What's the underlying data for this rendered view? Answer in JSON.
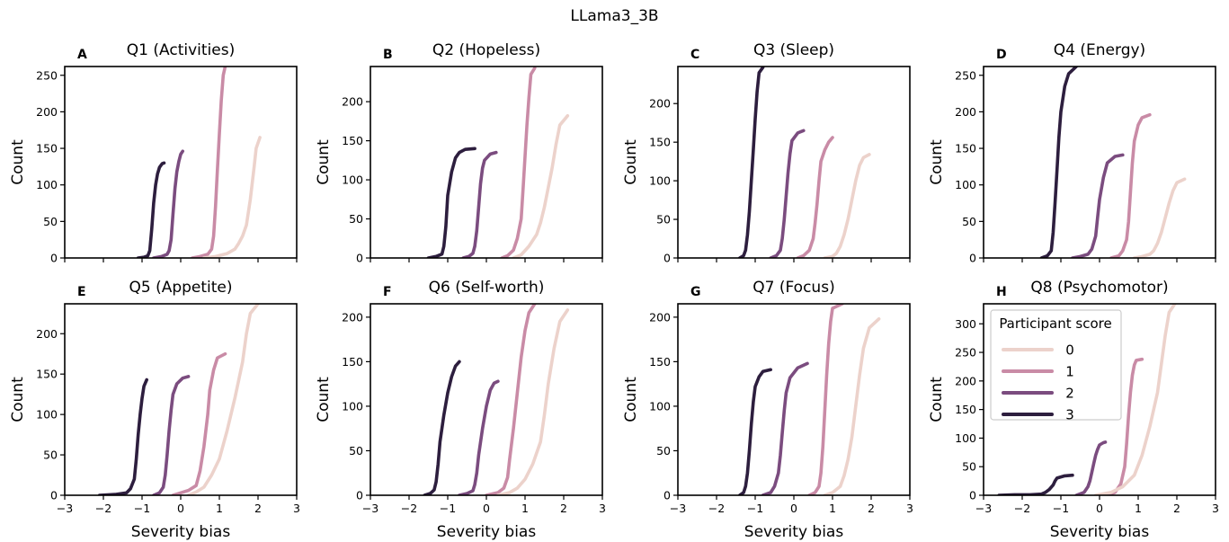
{
  "figure": {
    "title": "LLama3_3B",
    "xlabel": "Severity bias",
    "ylabel": "Count",
    "x_ticks": [
      "−3",
      "−2",
      "−1",
      "0",
      "1",
      "2",
      "3"
    ]
  },
  "legend": {
    "title": "Participant score",
    "entries": [
      {
        "label": "0",
        "color": "#ecd2cb"
      },
      {
        "label": "1",
        "color": "#c98ba6"
      },
      {
        "label": "2",
        "color": "#7b4c7f"
      },
      {
        "label": "3",
        "color": "#2d1e3e"
      }
    ]
  },
  "chart_data": [
    {
      "panel": "A",
      "type": "line",
      "title": "Q1 (Activities)",
      "xlabel": "",
      "ylabel": "Count",
      "xlim": [
        -3,
        3
      ],
      "ylim": [
        0,
        262
      ],
      "yticks": [
        0,
        50,
        100,
        150,
        200,
        250
      ],
      "series": [
        {
          "name": "3",
          "x": [
            -1.1,
            -0.95,
            -0.85,
            -0.8,
            -0.75,
            -0.7,
            -0.65,
            -0.6,
            -0.55,
            -0.48,
            -0.43
          ],
          "y": [
            0,
            1,
            3,
            10,
            40,
            75,
            100,
            115,
            124,
            129,
            130
          ]
        },
        {
          "name": "2",
          "x": [
            -0.7,
            -0.5,
            -0.35,
            -0.3,
            -0.25,
            -0.2,
            -0.15,
            -0.1,
            -0.05,
            0.0,
            0.05
          ],
          "y": [
            0,
            2,
            5,
            10,
            25,
            60,
            95,
            118,
            132,
            142,
            146
          ]
        },
        {
          "name": "1",
          "x": [
            0.3,
            0.5,
            0.7,
            0.8,
            0.85,
            0.9,
            0.95,
            1.0,
            1.05,
            1.1,
            1.15
          ],
          "y": [
            0,
            2,
            5,
            12,
            30,
            70,
            120,
            170,
            215,
            250,
            262
          ]
        },
        {
          "name": "0",
          "x": [
            0.6,
            0.9,
            1.2,
            1.4,
            1.5,
            1.6,
            1.7,
            1.8,
            1.9,
            1.95,
            2.05
          ],
          "y": [
            0,
            2,
            6,
            12,
            20,
            30,
            45,
            80,
            125,
            150,
            165
          ]
        }
      ]
    },
    {
      "panel": "B",
      "type": "line",
      "title": "Q2 (Hopeless)",
      "xlabel": "",
      "ylabel": "Count",
      "xlim": [
        -3,
        3
      ],
      "ylim": [
        0,
        245
      ],
      "yticks": [
        0,
        50,
        100,
        150,
        200
      ],
      "series": [
        {
          "name": "3",
          "x": [
            -1.5,
            -1.3,
            -1.15,
            -1.1,
            -1.05,
            -1.0,
            -0.9,
            -0.8,
            -0.7,
            -0.55,
            -0.3
          ],
          "y": [
            0,
            2,
            5,
            15,
            40,
            80,
            110,
            128,
            135,
            139,
            140
          ]
        },
        {
          "name": "2",
          "x": [
            -0.6,
            -0.45,
            -0.35,
            -0.3,
            -0.25,
            -0.2,
            -0.15,
            -0.1,
            -0.05,
            0.1,
            0.25
          ],
          "y": [
            0,
            2,
            6,
            15,
            35,
            65,
            95,
            115,
            125,
            133,
            135
          ]
        },
        {
          "name": "1",
          "x": [
            0.4,
            0.55,
            0.7,
            0.8,
            0.9,
            0.95,
            1.0,
            1.05,
            1.1,
            1.15,
            1.25
          ],
          "y": [
            0,
            3,
            10,
            25,
            50,
            90,
            130,
            170,
            205,
            235,
            243
          ]
        },
        {
          "name": "0",
          "x": [
            0.7,
            0.9,
            1.1,
            1.3,
            1.4,
            1.5,
            1.6,
            1.7,
            1.8,
            1.9,
            2.1
          ],
          "y": [
            0,
            4,
            15,
            30,
            45,
            65,
            90,
            115,
            145,
            170,
            182
          ]
        }
      ]
    },
    {
      "panel": "C",
      "type": "line",
      "title": "Q3 (Sleep)",
      "xlabel": "",
      "ylabel": "Count",
      "xlim": [
        -3,
        3
      ],
      "ylim": [
        0,
        248
      ],
      "yticks": [
        0,
        50,
        100,
        150,
        200
      ],
      "series": [
        {
          "name": "3",
          "x": [
            -1.4,
            -1.3,
            -1.25,
            -1.2,
            -1.15,
            -1.1,
            -1.05,
            -1.0,
            -0.95,
            -0.9,
            -0.8
          ],
          "y": [
            0,
            3,
            10,
            30,
            60,
            100,
            140,
            180,
            215,
            240,
            247
          ]
        },
        {
          "name": "2",
          "x": [
            -0.6,
            -0.45,
            -0.35,
            -0.3,
            -0.25,
            -0.2,
            -0.15,
            -0.1,
            -0.05,
            0.1,
            0.25
          ],
          "y": [
            0,
            3,
            10,
            25,
            50,
            80,
            110,
            135,
            152,
            162,
            165
          ]
        },
        {
          "name": "1",
          "x": [
            0.1,
            0.25,
            0.4,
            0.5,
            0.55,
            0.6,
            0.65,
            0.7,
            0.8,
            0.9,
            1.0
          ],
          "y": [
            0,
            3,
            10,
            25,
            45,
            70,
            100,
            125,
            140,
            150,
            156
          ]
        },
        {
          "name": "0",
          "x": [
            0.8,
            1.0,
            1.1,
            1.2,
            1.3,
            1.4,
            1.5,
            1.6,
            1.7,
            1.8,
            1.95
          ],
          "y": [
            0,
            2,
            6,
            15,
            30,
            50,
            75,
            100,
            120,
            130,
            134
          ]
        }
      ]
    },
    {
      "panel": "D",
      "type": "line",
      "title": "Q4 (Energy)",
      "xlabel": "",
      "ylabel": "Count",
      "xlim": [
        -3,
        3
      ],
      "ylim": [
        0,
        262
      ],
      "yticks": [
        0,
        50,
        100,
        150,
        200,
        250
      ],
      "series": [
        {
          "name": "3",
          "x": [
            -1.5,
            -1.35,
            -1.25,
            -1.2,
            -1.15,
            -1.1,
            -1.05,
            -1.0,
            -0.9,
            -0.8,
            -0.6
          ],
          "y": [
            0,
            3,
            10,
            35,
            75,
            120,
            165,
            200,
            235,
            252,
            262
          ]
        },
        {
          "name": "2",
          "x": [
            -0.7,
            -0.5,
            -0.3,
            -0.2,
            -0.1,
            -0.05,
            0.0,
            0.1,
            0.2,
            0.4,
            0.6
          ],
          "y": [
            0,
            2,
            5,
            12,
            30,
            55,
            80,
            110,
            130,
            139,
            141
          ]
        },
        {
          "name": "1",
          "x": [
            0.3,
            0.5,
            0.6,
            0.7,
            0.75,
            0.8,
            0.85,
            0.9,
            1.0,
            1.1,
            1.3
          ],
          "y": [
            0,
            3,
            10,
            25,
            50,
            90,
            130,
            160,
            182,
            192,
            196
          ]
        },
        {
          "name": "0",
          "x": [
            0.9,
            1.1,
            1.3,
            1.4,
            1.5,
            1.6,
            1.7,
            1.8,
            1.9,
            2.0,
            2.2
          ],
          "y": [
            0,
            2,
            5,
            10,
            20,
            35,
            55,
            75,
            92,
            103,
            108
          ]
        }
      ]
    },
    {
      "panel": "E",
      "type": "line",
      "title": "Q5 (Appetite)",
      "xlabel": "Severity bias",
      "ylabel": "Count",
      "xlim": [
        -3,
        3
      ],
      "ylim": [
        0,
        237
      ],
      "yticks": [
        0,
        50,
        100,
        150,
        200
      ],
      "series": [
        {
          "name": "3",
          "x": [
            -2.1,
            -1.7,
            -1.4,
            -1.3,
            -1.2,
            -1.15,
            -1.1,
            -1.05,
            -1.0,
            -0.95,
            -0.88
          ],
          "y": [
            0,
            1,
            3,
            8,
            20,
            45,
            75,
            100,
            120,
            135,
            143
          ]
        },
        {
          "name": "2",
          "x": [
            -0.7,
            -0.55,
            -0.45,
            -0.4,
            -0.35,
            -0.3,
            -0.25,
            -0.2,
            -0.1,
            0.05,
            0.2
          ],
          "y": [
            0,
            3,
            10,
            25,
            50,
            80,
            105,
            125,
            138,
            145,
            147
          ]
        },
        {
          "name": "1",
          "x": [
            -0.2,
            0.0,
            0.2,
            0.4,
            0.5,
            0.6,
            0.7,
            0.75,
            0.85,
            0.95,
            1.15
          ],
          "y": [
            0,
            3,
            6,
            12,
            30,
            60,
            100,
            130,
            155,
            170,
            175
          ]
        },
        {
          "name": "0",
          "x": [
            0.2,
            0.4,
            0.6,
            0.8,
            1.0,
            1.2,
            1.4,
            1.6,
            1.7,
            1.8,
            2.0
          ],
          "y": [
            0,
            4,
            10,
            25,
            45,
            80,
            120,
            165,
            200,
            225,
            237
          ]
        }
      ]
    },
    {
      "panel": "F",
      "type": "line",
      "title": "Q6 (Self-worth)",
      "xlabel": "Severity bias",
      "ylabel": "Count",
      "xlim": [
        -3,
        3
      ],
      "ylim": [
        0,
        215
      ],
      "yticks": [
        0,
        50,
        100,
        150,
        200
      ],
      "series": [
        {
          "name": "3",
          "x": [
            -1.6,
            -1.45,
            -1.35,
            -1.3,
            -1.25,
            -1.2,
            -1.1,
            -1.0,
            -0.9,
            -0.8,
            -0.7
          ],
          "y": [
            0,
            2,
            6,
            15,
            35,
            60,
            90,
            115,
            133,
            145,
            150
          ]
        },
        {
          "name": "2",
          "x": [
            -0.7,
            -0.5,
            -0.35,
            -0.3,
            -0.25,
            -0.2,
            -0.1,
            0.0,
            0.1,
            0.2,
            0.3
          ],
          "y": [
            0,
            2,
            5,
            12,
            25,
            45,
            75,
            100,
            118,
            126,
            128
          ]
        },
        {
          "name": "1",
          "x": [
            0.0,
            0.3,
            0.45,
            0.55,
            0.6,
            0.7,
            0.8,
            0.9,
            1.0,
            1.1,
            1.25
          ],
          "y": [
            0,
            3,
            8,
            20,
            40,
            75,
            115,
            155,
            185,
            205,
            215
          ]
        },
        {
          "name": "0",
          "x": [
            0.3,
            0.6,
            0.8,
            1.0,
            1.2,
            1.4,
            1.5,
            1.6,
            1.75,
            1.9,
            2.1
          ],
          "y": [
            0,
            3,
            8,
            18,
            35,
            60,
            90,
            125,
            165,
            195,
            208
          ]
        }
      ]
    },
    {
      "panel": "G",
      "type": "line",
      "title": "Q7 (Focus)",
      "xlabel": "Severity bias",
      "ylabel": "Count",
      "xlim": [
        -3,
        3
      ],
      "ylim": [
        0,
        215
      ],
      "yticks": [
        0,
        50,
        100,
        150,
        200
      ],
      "series": [
        {
          "name": "3",
          "x": [
            -1.4,
            -1.3,
            -1.25,
            -1.2,
            -1.15,
            -1.1,
            -1.05,
            -1.0,
            -0.9,
            -0.8,
            -0.6
          ],
          "y": [
            0,
            3,
            10,
            25,
            50,
            80,
            105,
            122,
            133,
            139,
            141
          ]
        },
        {
          "name": "2",
          "x": [
            -0.8,
            -0.6,
            -0.5,
            -0.4,
            -0.35,
            -0.3,
            -0.25,
            -0.2,
            -0.1,
            0.1,
            0.35
          ],
          "y": [
            0,
            3,
            10,
            25,
            45,
            70,
            95,
            115,
            132,
            143,
            148
          ]
        },
        {
          "name": "1",
          "x": [
            0.4,
            0.55,
            0.65,
            0.7,
            0.75,
            0.8,
            0.85,
            0.9,
            0.95,
            1.0,
            1.25
          ],
          "y": [
            0,
            3,
            10,
            25,
            55,
            95,
            135,
            170,
            195,
            210,
            215
          ]
        },
        {
          "name": "0",
          "x": [
            0.8,
            1.0,
            1.2,
            1.3,
            1.4,
            1.5,
            1.6,
            1.7,
            1.8,
            1.95,
            2.2
          ],
          "y": [
            0,
            3,
            10,
            22,
            40,
            65,
            100,
            135,
            165,
            188,
            198
          ]
        }
      ]
    },
    {
      "panel": "H",
      "type": "line",
      "title": "Q8 (Psychomotor)",
      "xlabel": "Severity bias",
      "ylabel": "Count",
      "xlim": [
        -3,
        3
      ],
      "ylim": [
        0,
        335
      ],
      "yticks": [
        0,
        50,
        100,
        150,
        200,
        250,
        300
      ],
      "legend": "top-left",
      "series": [
        {
          "name": "3",
          "x": [
            -2.6,
            -2.2,
            -1.8,
            -1.5,
            -1.4,
            -1.3,
            -1.2,
            -1.15,
            -1.1,
            -0.9,
            -0.7
          ],
          "y": [
            0,
            1,
            1,
            2,
            5,
            10,
            18,
            25,
            30,
            34,
            35
          ]
        },
        {
          "name": "2",
          "x": [
            -0.6,
            -0.4,
            -0.3,
            -0.25,
            -0.2,
            -0.15,
            -0.1,
            -0.05,
            0.0,
            0.1,
            0.15
          ],
          "y": [
            0,
            5,
            15,
            25,
            40,
            55,
            70,
            80,
            88,
            92,
            93
          ]
        },
        {
          "name": "1",
          "x": [
            0.2,
            0.4,
            0.55,
            0.65,
            0.7,
            0.75,
            0.8,
            0.85,
            0.9,
            0.95,
            1.1
          ],
          "y": [
            0,
            5,
            20,
            50,
            90,
            140,
            180,
            210,
            228,
            236,
            238
          ]
        },
        {
          "name": "0",
          "x": [
            -0.1,
            0.3,
            0.6,
            0.9,
            1.1,
            1.3,
            1.5,
            1.6,
            1.7,
            1.8,
            1.95
          ],
          "y": [
            0,
            5,
            15,
            35,
            70,
            120,
            180,
            230,
            280,
            320,
            335
          ]
        }
      ]
    }
  ]
}
